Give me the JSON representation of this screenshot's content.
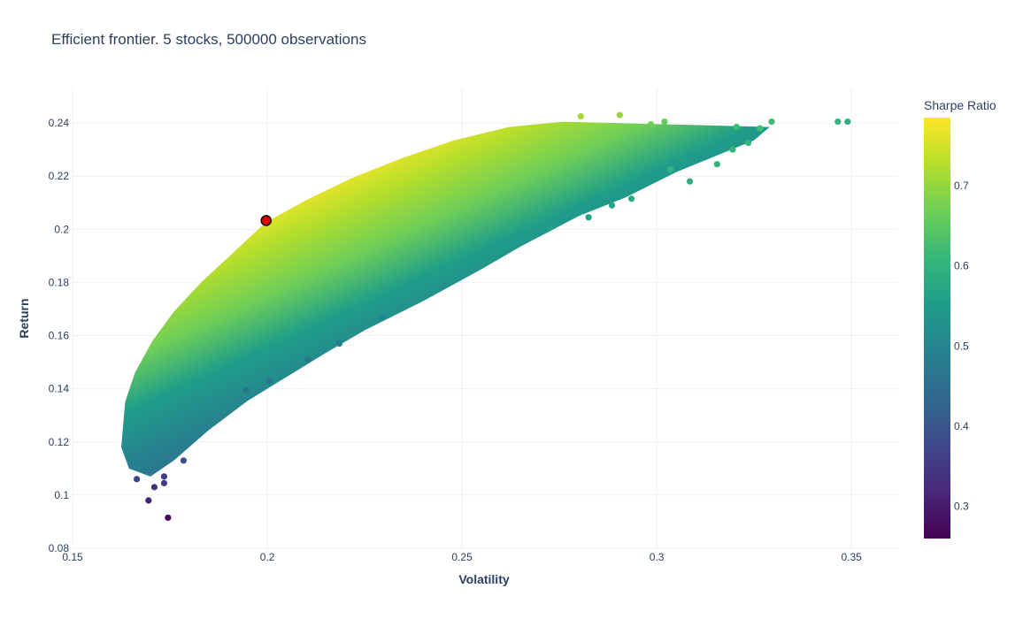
{
  "chart_data": {
    "type": "scatter",
    "title": "Efficient frontier. 5 stocks, 500000 observations",
    "xlabel": "Volatility",
    "ylabel": "Return",
    "xlim": [
      0.15,
      0.362
    ],
    "ylim": [
      0.08,
      0.253
    ],
    "xticks": [
      0.15,
      0.2,
      0.25,
      0.3,
      0.35
    ],
    "xtick_labels": [
      "0.15",
      "0.2",
      "0.25",
      "0.3",
      "0.35"
    ],
    "yticks": [
      0.08,
      0.1,
      0.12,
      0.14,
      0.16,
      0.18,
      0.2,
      0.22,
      0.24
    ],
    "ytick_labels": [
      "0.08",
      "0.1",
      "0.12",
      "0.14",
      "0.16",
      "0.18",
      "0.2",
      "0.22",
      "0.24"
    ],
    "grid": true,
    "colorscale": "Viridis",
    "colorbar": {
      "title": "Sharpe Ratio",
      "range": [
        0.26,
        0.785
      ],
      "ticks": [
        0.3,
        0.4,
        0.5,
        0.6,
        0.7
      ],
      "tick_labels": [
        "0.3",
        "0.4",
        "0.5",
        "0.6",
        "0.7"
      ]
    },
    "sample_points": [
      {
        "x": 0.1745,
        "y": 0.0915,
        "sharpe": 0.27
      },
      {
        "x": 0.1695,
        "y": 0.098,
        "sharpe": 0.31
      },
      {
        "x": 0.171,
        "y": 0.103,
        "sharpe": 0.34
      },
      {
        "x": 0.1735,
        "y": 0.1045,
        "sharpe": 0.35
      },
      {
        "x": 0.1735,
        "y": 0.107,
        "sharpe": 0.36
      },
      {
        "x": 0.1665,
        "y": 0.106,
        "sharpe": 0.37
      },
      {
        "x": 0.1785,
        "y": 0.113,
        "sharpe": 0.39
      },
      {
        "x": 0.1945,
        "y": 0.1395,
        "sharpe": 0.46
      },
      {
        "x": 0.2005,
        "y": 0.143,
        "sharpe": 0.46
      },
      {
        "x": 0.2105,
        "y": 0.151,
        "sharpe": 0.47
      },
      {
        "x": 0.2185,
        "y": 0.157,
        "sharpe": 0.48
      },
      {
        "x": 0.2295,
        "y": 0.167,
        "sharpe": 0.5
      },
      {
        "x": 0.2455,
        "y": 0.179,
        "sharpe": 0.52
      },
      {
        "x": 0.2565,
        "y": 0.19,
        "sharpe": 0.54
      },
      {
        "x": 0.2725,
        "y": 0.2005,
        "sharpe": 0.56
      },
      {
        "x": 0.2825,
        "y": 0.2045,
        "sharpe": 0.56
      },
      {
        "x": 0.2885,
        "y": 0.209,
        "sharpe": 0.57
      },
      {
        "x": 0.2935,
        "y": 0.2115,
        "sharpe": 0.58
      },
      {
        "x": 0.3085,
        "y": 0.218,
        "sharpe": 0.59
      },
      {
        "x": 0.3035,
        "y": 0.2225,
        "sharpe": 0.6
      },
      {
        "x": 0.3155,
        "y": 0.2245,
        "sharpe": 0.6
      },
      {
        "x": 0.3195,
        "y": 0.23,
        "sharpe": 0.61
      },
      {
        "x": 0.3235,
        "y": 0.2325,
        "sharpe": 0.61
      },
      {
        "x": 0.3205,
        "y": 0.2385,
        "sharpe": 0.62
      },
      {
        "x": 0.3265,
        "y": 0.238,
        "sharpe": 0.62
      },
      {
        "x": 0.3295,
        "y": 0.2405,
        "sharpe": 0.62
      },
      {
        "x": 0.3465,
        "y": 0.2405,
        "sharpe": 0.6
      },
      {
        "x": 0.349,
        "y": 0.2405,
        "sharpe": 0.59
      },
      {
        "x": 0.302,
        "y": 0.2405,
        "sharpe": 0.66
      },
      {
        "x": 0.2905,
        "y": 0.243,
        "sharpe": 0.7
      },
      {
        "x": 0.2805,
        "y": 0.2425,
        "sharpe": 0.71
      },
      {
        "x": 0.2985,
        "y": 0.2395,
        "sharpe": 0.67
      }
    ],
    "frontier_upper": [
      [
        0.1625,
        0.118
      ],
      [
        0.1635,
        0.135
      ],
      [
        0.166,
        0.146
      ],
      [
        0.1705,
        0.158
      ],
      [
        0.176,
        0.169
      ],
      [
        0.183,
        0.18
      ],
      [
        0.19,
        0.1895
      ],
      [
        0.1995,
        0.2025
      ],
      [
        0.21,
        0.211
      ],
      [
        0.222,
        0.2195
      ],
      [
        0.235,
        0.227
      ],
      [
        0.248,
        0.2335
      ],
      [
        0.262,
        0.2385
      ],
      [
        0.276,
        0.2405
      ]
    ],
    "frontier_lower": [
      [
        0.1625,
        0.118
      ],
      [
        0.1645,
        0.11
      ],
      [
        0.17,
        0.107
      ],
      [
        0.176,
        0.113
      ],
      [
        0.185,
        0.1245
      ],
      [
        0.195,
        0.1355
      ],
      [
        0.205,
        0.1445
      ],
      [
        0.215,
        0.1535
      ],
      [
        0.225,
        0.162
      ],
      [
        0.24,
        0.173
      ],
      [
        0.255,
        0.185
      ],
      [
        0.265,
        0.1935
      ],
      [
        0.28,
        0.205
      ],
      [
        0.292,
        0.212
      ],
      [
        0.305,
        0.2215
      ],
      [
        0.315,
        0.2275
      ],
      [
        0.325,
        0.2335
      ],
      [
        0.329,
        0.2385
      ]
    ],
    "max_sharpe_point": {
      "x": 0.1997,
      "y": 0.2033,
      "color": "#e00000"
    }
  }
}
